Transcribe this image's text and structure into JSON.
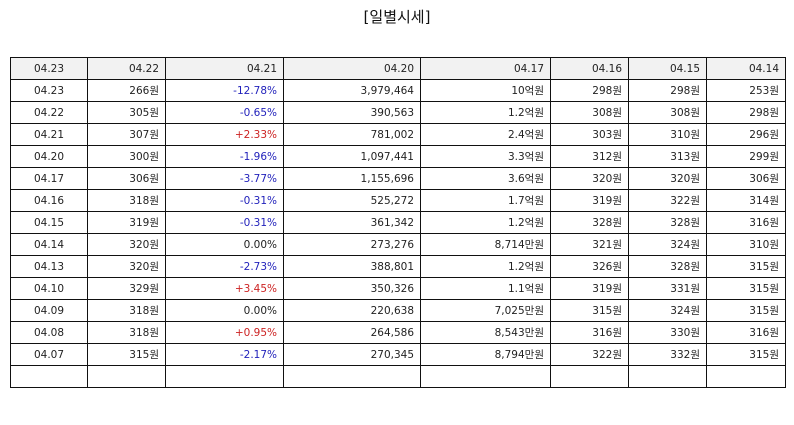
{
  "title": "[일별시세]",
  "colors": {
    "negative": "#2222bb",
    "positive": "#cc2222",
    "header_bg": "#f2f2f2"
  },
  "header": [
    "04.23",
    "04.22",
    "04.21",
    "04.20",
    "04.17",
    "04.16",
    "04.15",
    "04.14"
  ],
  "rows": [
    [
      "04.23",
      "266원",
      "-12.78%",
      "3,979,464",
      "10억원",
      "298원",
      "298원",
      "253원"
    ],
    [
      "04.22",
      "305원",
      "-0.65%",
      "390,563",
      "1.2억원",
      "308원",
      "308원",
      "298원"
    ],
    [
      "04.21",
      "307원",
      "+2.33%",
      "781,002",
      "2.4억원",
      "303원",
      "310원",
      "296원"
    ],
    [
      "04.20",
      "300원",
      "-1.96%",
      "1,097,441",
      "3.3억원",
      "312원",
      "313원",
      "299원"
    ],
    [
      "04.17",
      "306원",
      "-3.77%",
      "1,155,696",
      "3.6억원",
      "320원",
      "320원",
      "306원"
    ],
    [
      "04.16",
      "318원",
      "-0.31%",
      "525,272",
      "1.7억원",
      "319원",
      "322원",
      "314원"
    ],
    [
      "04.15",
      "319원",
      "-0.31%",
      "361,342",
      "1.2억원",
      "328원",
      "328원",
      "316원"
    ],
    [
      "04.14",
      "320원",
      "0.00%",
      "273,276",
      "8,714만원",
      "321원",
      "324원",
      "310원"
    ],
    [
      "04.13",
      "320원",
      "-2.73%",
      "388,801",
      "1.2억원",
      "326원",
      "328원",
      "315원"
    ],
    [
      "04.10",
      "329원",
      "+3.45%",
      "350,326",
      "1.1억원",
      "319원",
      "331원",
      "315원"
    ],
    [
      "04.09",
      "318원",
      "0.00%",
      "220,638",
      "7,025만원",
      "315원",
      "324원",
      "315원"
    ],
    [
      "04.08",
      "318원",
      "+0.95%",
      "264,586",
      "8,543만원",
      "316원",
      "330원",
      "316원"
    ],
    [
      "04.07",
      "315원",
      "-2.17%",
      "270,345",
      "8,794만원",
      "322원",
      "332원",
      "315원"
    ],
    [
      "",
      "",
      "",
      "",
      "",
      "",
      "",
      ""
    ]
  ]
}
